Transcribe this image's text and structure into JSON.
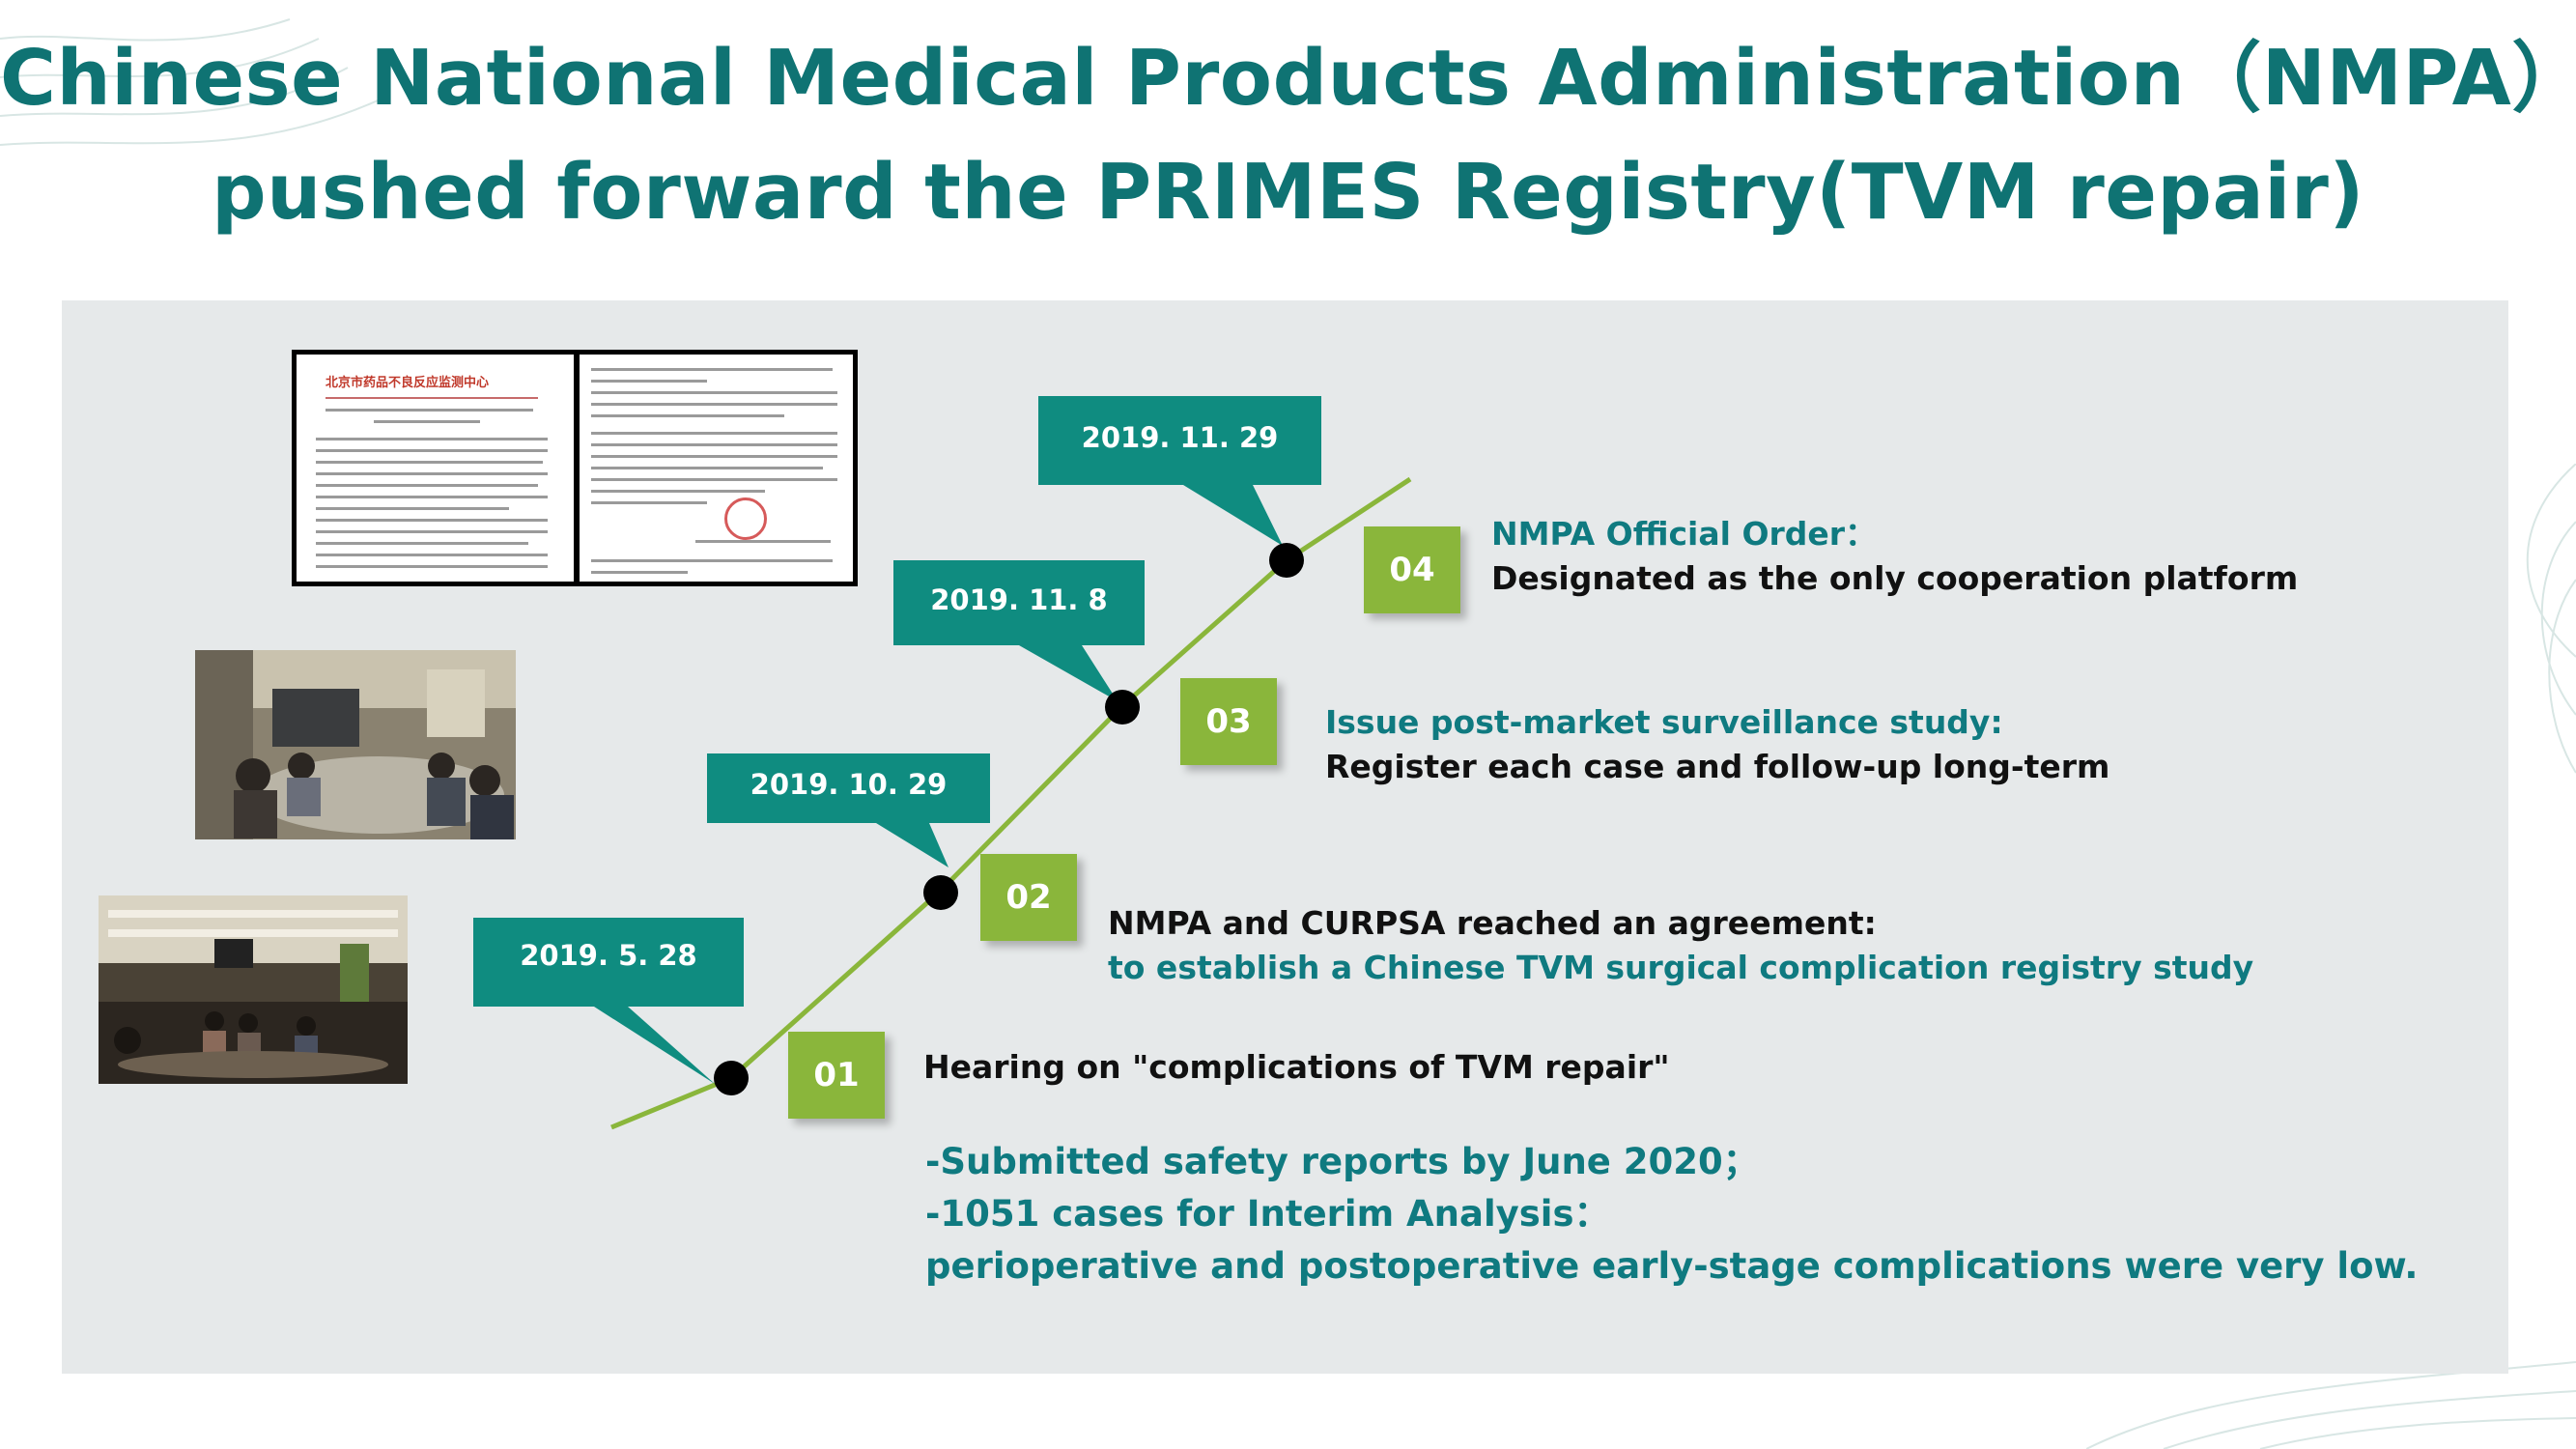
{
  "slide": {
    "title_line1": "Chinese National Medical Products Administration（NMPA）",
    "title_line2": "pushed forward the PRIMES Registry(TVM repair)"
  },
  "document": {
    "header_text": "北京市药品不良反应监测中心"
  },
  "timeline": {
    "milestones": [
      {
        "date": "2019. 5. 28",
        "step": "01",
        "line1": "Hearing on \"complications of TVM repair\"",
        "line2": ""
      },
      {
        "date": "2019. 10. 29",
        "step": "02",
        "line1": "NMPA and CURPSA  reached an agreement:",
        "line2": "to establish a Chinese TVM surgical complication registry study"
      },
      {
        "date": "2019. 11. 8",
        "step": "03",
        "line1": "Issue post-market surveillance study:",
        "line2": "Register each case and follow-up long-term"
      },
      {
        "date": "2019. 11. 29",
        "step": "04",
        "line1": "NMPA Official Order：",
        "line2": "Designated as the only cooperation platform"
      }
    ]
  },
  "summary": {
    "line1": "-Submitted safety reports by June 2020；",
    "line2": "-1051 cases for  Interim Analysis：",
    "line3": "perioperative and postoperative early-stage complications were very low."
  },
  "colors": {
    "title": "#0f7373",
    "callout": "#0f8c80",
    "step_box": "#8ab63b",
    "timeline_line": "#8ab63b",
    "panel": "#e6e9ea"
  }
}
